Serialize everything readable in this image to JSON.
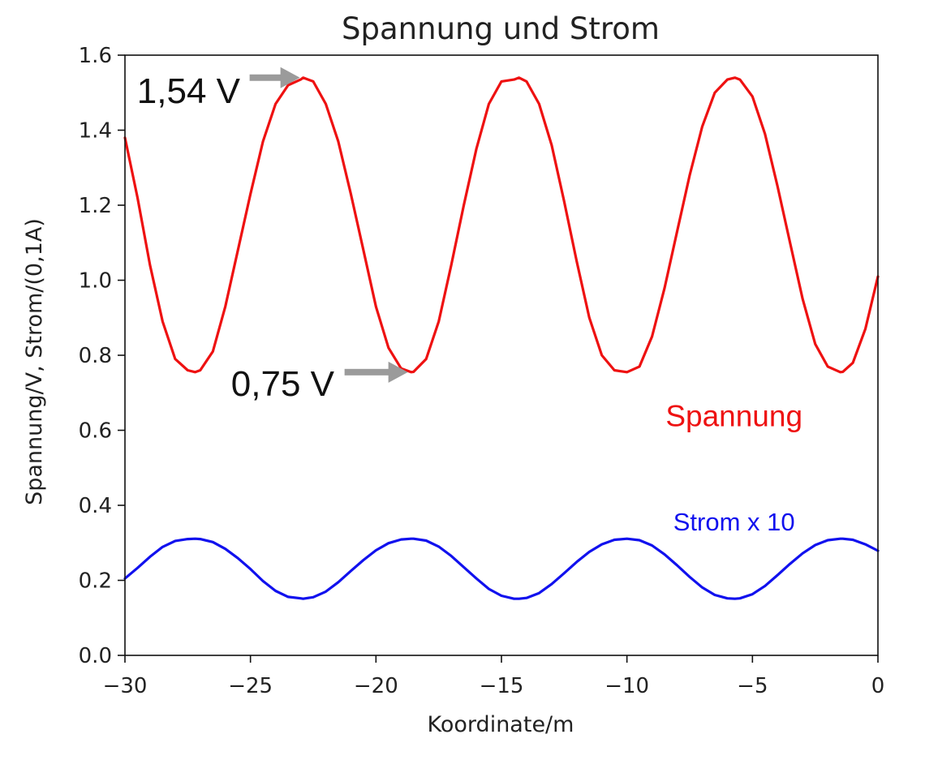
{
  "chart_data": {
    "type": "line",
    "title": "Spannung und Strom",
    "xlabel": "Koordinate/m",
    "ylabel": "Spannung/V, Strom/(0,1A)",
    "xlim": [
      -30,
      0
    ],
    "ylim": [
      0,
      1.6
    ],
    "grid": false,
    "legend": "none",
    "x_ticks": [
      -30,
      -25,
      -20,
      -15,
      -10,
      -5,
      0
    ],
    "x_tick_labels": [
      "−30",
      "−25",
      "−20",
      "−15",
      "−10",
      "−5",
      "0"
    ],
    "y_ticks": [
      0,
      0.2,
      0.4,
      0.6,
      0.8,
      1.0,
      1.2,
      1.4,
      1.6
    ],
    "y_tick_labels": [
      "0.0",
      "0.2",
      "0.4",
      "0.6",
      "0.8",
      "1.0",
      "1.2",
      "1.4",
      "1.6"
    ],
    "x": [
      -30.0,
      -29.5,
      -29.0,
      -28.5,
      -28.0,
      -27.5,
      -27.2,
      -27.0,
      -26.5,
      -26.0,
      -25.5,
      -25.0,
      -24.5,
      -24.0,
      -23.5,
      -23.0,
      -22.9,
      -22.5,
      -22.0,
      -21.5,
      -21.0,
      -20.5,
      -20.0,
      -19.5,
      -19.0,
      -18.6,
      -18.5,
      -18.0,
      -17.5,
      -17.0,
      -16.5,
      -16.0,
      -15.5,
      -15.0,
      -14.5,
      -14.3,
      -14.0,
      -13.5,
      -13.0,
      -12.5,
      -12.0,
      -11.5,
      -11.0,
      -10.5,
      -10.0,
      -9.5,
      -9.0,
      -8.5,
      -8.0,
      -7.5,
      -7.0,
      -6.5,
      -6.0,
      -5.7,
      -5.5,
      -5.0,
      -4.5,
      -4.0,
      -3.5,
      -3.0,
      -2.5,
      -2.0,
      -1.5,
      -1.4,
      -1.0,
      -0.5,
      0.0
    ],
    "series": [
      {
        "name": "Spannung",
        "color": "#ee1111",
        "values": [
          1.38,
          1.22,
          1.04,
          0.89,
          0.79,
          0.76,
          0.755,
          0.76,
          0.81,
          0.93,
          1.08,
          1.23,
          1.37,
          1.47,
          1.52,
          1.535,
          1.54,
          1.53,
          1.47,
          1.37,
          1.23,
          1.08,
          0.93,
          0.82,
          0.765,
          0.755,
          0.756,
          0.79,
          0.89,
          1.04,
          1.2,
          1.35,
          1.47,
          1.53,
          1.535,
          1.54,
          1.53,
          1.47,
          1.36,
          1.21,
          1.05,
          0.9,
          0.8,
          0.76,
          0.755,
          0.77,
          0.85,
          0.98,
          1.13,
          1.28,
          1.41,
          1.5,
          1.535,
          1.54,
          1.535,
          1.49,
          1.39,
          1.25,
          1.1,
          0.95,
          0.83,
          0.77,
          0.755,
          0.756,
          0.78,
          0.87,
          1.01
        ]
      },
      {
        "name": "Strom x 10",
        "color": "#1111ee",
        "values": [
          0.205,
          0.233,
          0.263,
          0.289,
          0.305,
          0.31,
          0.311,
          0.31,
          0.302,
          0.284,
          0.259,
          0.23,
          0.198,
          0.172,
          0.156,
          0.152,
          0.151,
          0.155,
          0.17,
          0.195,
          0.225,
          0.254,
          0.28,
          0.299,
          0.309,
          0.311,
          0.311,
          0.306,
          0.29,
          0.265,
          0.235,
          0.205,
          0.177,
          0.159,
          0.151,
          0.151,
          0.153,
          0.166,
          0.19,
          0.219,
          0.249,
          0.276,
          0.296,
          0.308,
          0.311,
          0.307,
          0.293,
          0.269,
          0.24,
          0.209,
          0.181,
          0.161,
          0.152,
          0.151,
          0.152,
          0.163,
          0.185,
          0.214,
          0.244,
          0.272,
          0.294,
          0.307,
          0.311,
          0.311,
          0.308,
          0.296,
          0.279
        ]
      }
    ],
    "series_labels": [
      {
        "text": "Spannung",
        "x": -5.7,
        "y": 0.76,
        "color": "#ee1111"
      },
      {
        "text": "Strom x 10",
        "x": -5.7,
        "y": 0.37,
        "color": "#1111ee"
      }
    ],
    "annotations": [
      {
        "text": "1,54 V",
        "target_x": -22.9,
        "target_y": 1.54
      },
      {
        "text": "0,75 V",
        "target_x": -18.6,
        "target_y": 0.755
      }
    ],
    "arrow_color": "#9b9b9b"
  }
}
